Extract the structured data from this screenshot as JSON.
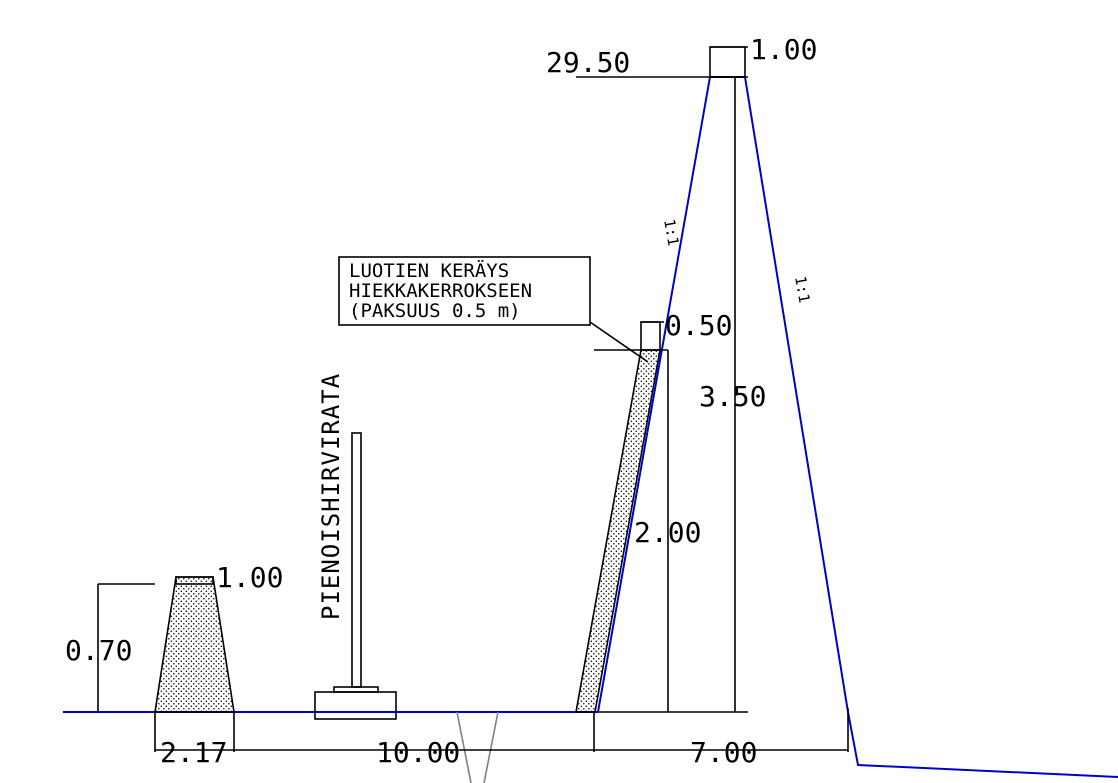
{
  "colors": {
    "background": "#ffffff",
    "ground_line": "#0000cc",
    "berm_outline": "#0000cc",
    "line_work": "#000000",
    "ditch": "#808080"
  },
  "labels": {
    "top_elevation": "29.50",
    "berm_top_width": "1.00",
    "berm_height": "3.50",
    "slope_left": "1:1",
    "slope_right": "1:1",
    "sand_top_width": "0.50",
    "sand_height": "2.00",
    "note_line1": "LUOTIEN KERÄYS",
    "note_line2": "HIEKKAKERROKSEEN",
    "note_line3": "(PAKSUUS 0.5 m)",
    "small_berm_top_width": "1.00",
    "small_berm_height": "0.70",
    "track_name": "PIENOISHIRVIRATA",
    "dim_small_berm_base": "2.17",
    "dim_range_length": "10.00",
    "dim_berm_base": "7.00"
  }
}
